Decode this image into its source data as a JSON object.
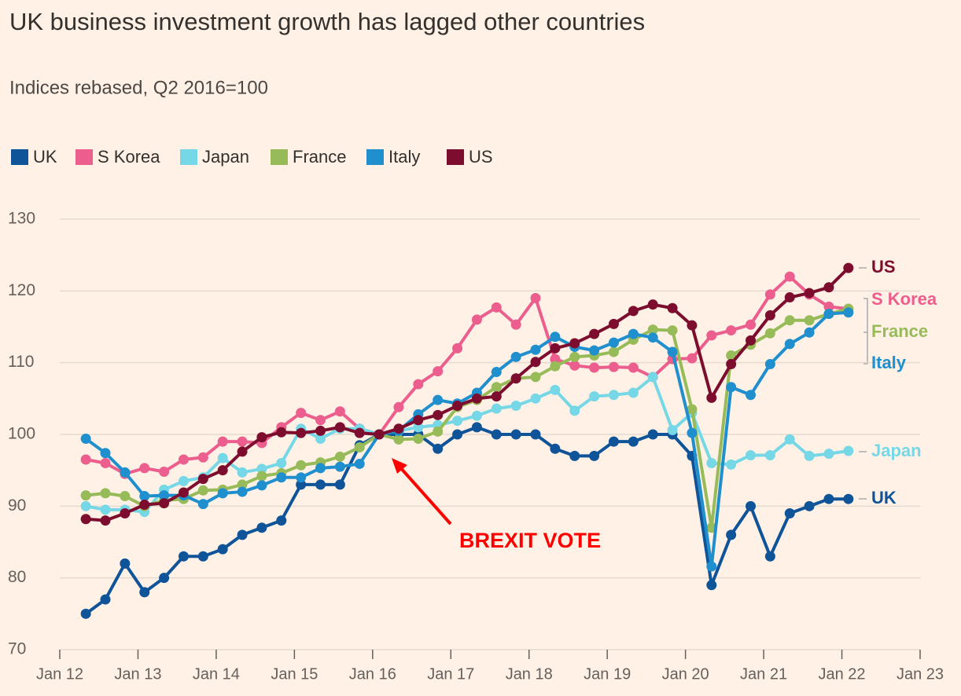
{
  "chart_data": {
    "type": "line",
    "title": "UK business investment growth has lagged other countries",
    "subtitle": "Indices rebased, Q2 2016=100",
    "x": [
      "2012-05",
      "2012-08",
      "2012-11",
      "2013-02",
      "2013-05",
      "2013-08",
      "2013-11",
      "2014-02",
      "2014-05",
      "2014-08",
      "2014-11",
      "2015-02",
      "2015-05",
      "2015-08",
      "2015-11",
      "2016-02",
      "2016-05",
      "2016-08",
      "2016-11",
      "2017-02",
      "2017-05",
      "2017-08",
      "2017-11",
      "2018-02",
      "2018-05",
      "2018-08",
      "2018-11",
      "2019-02",
      "2019-05",
      "2019-08",
      "2019-11",
      "2020-02",
      "2020-05",
      "2020-08",
      "2020-11",
      "2021-02",
      "2021-05",
      "2021-08",
      "2021-11",
      "2022-02"
    ],
    "xlim": [
      "2012-01",
      "2023-01"
    ],
    "xticks": [
      {
        "value": "2012-01",
        "label": "Jan 12"
      },
      {
        "value": "2013-01",
        "label": "Jan 13"
      },
      {
        "value": "2014-01",
        "label": "Jan 14"
      },
      {
        "value": "2015-01",
        "label": "Jan 15"
      },
      {
        "value": "2016-01",
        "label": "Jan 16"
      },
      {
        "value": "2017-01",
        "label": "Jan 17"
      },
      {
        "value": "2018-01",
        "label": "Jan 18"
      },
      {
        "value": "2019-01",
        "label": "Jan 19"
      },
      {
        "value": "2020-01",
        "label": "Jan 20"
      },
      {
        "value": "2021-01",
        "label": "Jan 21"
      },
      {
        "value": "2022-01",
        "label": "Jan 22"
      },
      {
        "value": "2023-01",
        "label": "Jan 23"
      }
    ],
    "ylim": [
      70,
      130
    ],
    "yticks": [
      70,
      80,
      90,
      100,
      110,
      120,
      130
    ],
    "grid": true,
    "legend": "top-left",
    "annotations": [
      {
        "text": "BREXIT VOTE",
        "color": "#ff0000"
      }
    ],
    "series": [
      {
        "name": "UK",
        "color": "#0f5499",
        "values": [
          75,
          77,
          82,
          78,
          80,
          83,
          83,
          84,
          86,
          87,
          88,
          93,
          93,
          93,
          98.5,
          100,
          100,
          100,
          98,
          100,
          101,
          100,
          100,
          100,
          98,
          97,
          97,
          99,
          99,
          100,
          100,
          97,
          79,
          86,
          90,
          83,
          89,
          90,
          91,
          91
        ]
      },
      {
        "name": "S Korea",
        "color": "#eb5e8d",
        "values": [
          96.5,
          96,
          94.5,
          95.3,
          94.8,
          96.5,
          96.8,
          99,
          99,
          98.8,
          101,
          103,
          102,
          103.2,
          100.8,
          100,
          103.8,
          107,
          108.8,
          112,
          116,
          117.7,
          115.3,
          119,
          110.5,
          109.6,
          109.3,
          109.4,
          109.3,
          108,
          110.5,
          110.6,
          113.8,
          114.5,
          115.3,
          119.5,
          122,
          119.5,
          117.8,
          117.5
        ]
      },
      {
        "name": "Japan",
        "color": "#76d8e6",
        "values": [
          90,
          89.5,
          89.5,
          89.2,
          92.3,
          93.5,
          94,
          96.7,
          94.7,
          95.2,
          96,
          100.8,
          99.4,
          100.8,
          100.8,
          100,
          100.5,
          101,
          101.3,
          101.9,
          102.6,
          103.6,
          104,
          105,
          106.2,
          103.3,
          105.3,
          105.5,
          105.8,
          108,
          100.6,
          103,
          96,
          95.8,
          97.1,
          97.1,
          99.3,
          97,
          97.3,
          97.7
        ]
      },
      {
        "name": "France",
        "color": "#96bb58",
        "values": [
          91.5,
          91.8,
          91.4,
          90,
          90.8,
          91,
          92.2,
          92.3,
          93,
          94.2,
          94.6,
          95.7,
          96.1,
          96.9,
          98.2,
          100,
          99.3,
          99.4,
          100.4,
          103.8,
          104.8,
          106.6,
          107.8,
          108,
          109.5,
          110.8,
          111,
          111.5,
          113.2,
          114.6,
          114.5,
          103.5,
          87,
          111,
          112.5,
          114.1,
          115.9,
          115.9,
          116.8,
          117.5
        ]
      },
      {
        "name": "Italy",
        "color": "#208fce",
        "values": [
          99.4,
          97.4,
          94.7,
          91.4,
          91.5,
          91.5,
          90.3,
          91.8,
          92,
          92.9,
          94,
          94,
          95.3,
          95.5,
          95.9,
          100,
          100.5,
          102.8,
          104.8,
          104.3,
          105.8,
          108.7,
          110.8,
          111.8,
          113.6,
          112.2,
          111.7,
          112.8,
          114,
          113.5,
          111.5,
          100.2,
          81.6,
          106.6,
          105.5,
          109.8,
          112.6,
          114.2,
          116.8,
          117
        ]
      },
      {
        "name": "US",
        "color": "#7d0d2e",
        "values": [
          88.2,
          88,
          89,
          90.2,
          90.4,
          91.9,
          93.8,
          95,
          97.6,
          99.6,
          100.3,
          100.2,
          100.5,
          101,
          100.2,
          100,
          100.8,
          102,
          102.7,
          104,
          105,
          105.3,
          107.8,
          110.1,
          112,
          112.7,
          114,
          115.4,
          117.2,
          118.1,
          117.6,
          115.2,
          105.1,
          109.8,
          113.1,
          116.6,
          119.1,
          119.7,
          120.5,
          123.2
        ]
      }
    ]
  }
}
